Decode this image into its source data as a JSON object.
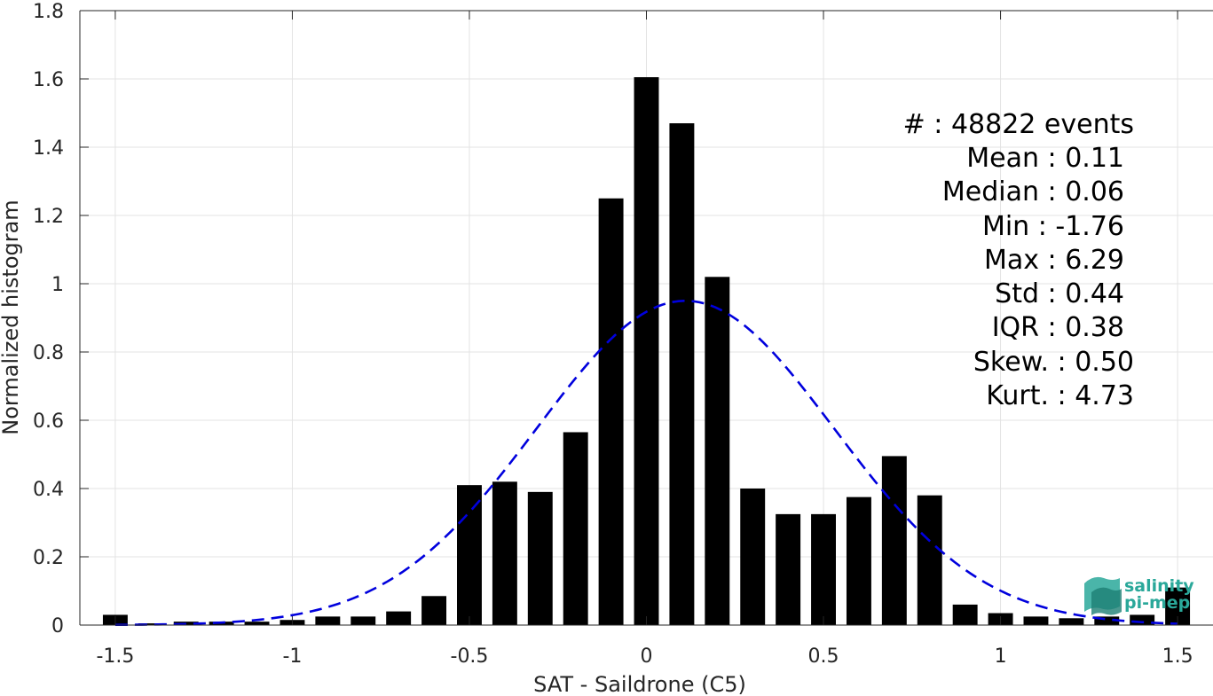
{
  "chart_data": {
    "type": "bar",
    "xlabel": "SAT - Saildrone (C5)",
    "ylabel": "Normalized histogram",
    "xlim": [
      -1.6,
      1.6
    ],
    "ylim": [
      0,
      1.8
    ],
    "xticks": [
      "-1.5",
      "-1",
      "-0.5",
      "0",
      "0.5",
      "1",
      "1.5"
    ],
    "xtick_values": [
      -1.5,
      -1,
      -0.5,
      0,
      0.5,
      1,
      1.5
    ],
    "yticks": [
      "0",
      "0.2",
      "0.4",
      "0.6",
      "0.8",
      "1",
      "1.2",
      "1.4",
      "1.6",
      "1.8"
    ],
    "ytick_values": [
      0,
      0.2,
      0.4,
      0.6,
      0.8,
      1.0,
      1.2,
      1.4,
      1.6,
      1.8
    ],
    "grid": true,
    "bar_color": "#000000",
    "bins": {
      "centers": [
        -1.5,
        -1.4,
        -1.3,
        -1.2,
        -1.1,
        -1.0,
        -0.9,
        -0.8,
        -0.7,
        -0.6,
        -0.5,
        -0.4,
        -0.3,
        -0.2,
        -0.1,
        0.0,
        0.1,
        0.2,
        0.3,
        0.4,
        0.5,
        0.6,
        0.7,
        0.8,
        0.9,
        1.0,
        1.1,
        1.2,
        1.3,
        1.4,
        1.5
      ],
      "values": [
        0.03,
        0.005,
        0.01,
        0.01,
        0.01,
        0.015,
        0.025,
        0.025,
        0.04,
        0.085,
        0.41,
        0.42,
        0.39,
        0.565,
        1.25,
        1.605,
        1.47,
        1.02,
        0.4,
        0.325,
        0.325,
        0.375,
        0.495,
        0.38,
        0.06,
        0.035,
        0.025,
        0.02,
        0.025,
        0.03,
        0.11
      ],
      "width": 0.07
    },
    "fit_curve": {
      "kind": "normal",
      "mean": 0.11,
      "std": 0.42,
      "color": "#0000dd",
      "style": "dashed"
    },
    "annotations": [
      "#  : 48822 events",
      "Mean : 0.11",
      "Median : 0.06",
      "Min : -1.76",
      "Max : 6.29",
      "Std : 0.44",
      "IQR : 0.38",
      "Skew. : 0.50",
      "Kurt. : 4.73"
    ]
  },
  "logo": {
    "line1": "salinity",
    "line2": "pi-mep",
    "color": "#2aa89a"
  }
}
